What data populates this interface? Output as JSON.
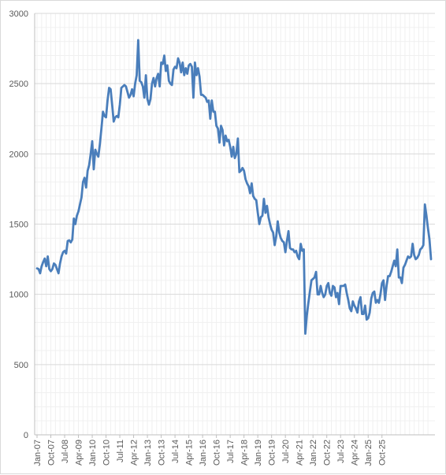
{
  "chart_data": {
    "type": "line",
    "title": "",
    "xlabel": "",
    "ylabel": "",
    "ylim": [
      0,
      3000
    ],
    "yticks": [
      0,
      500,
      1000,
      1500,
      2000,
      2500,
      3000
    ],
    "x_start": "Jan-07",
    "xtick_labels": [
      "Jan-07",
      "Oct-07",
      "Jul-08",
      "Apr-09",
      "Jan-10",
      "Oct-10",
      "Jul-11",
      "Apr-12",
      "Jan-13",
      "Oct-13",
      "Jul-14",
      "Apr-15",
      "Jan-16",
      "Oct-16",
      "Jul-17",
      "Apr-18",
      "Jan-19",
      "Oct-19",
      "Jul-20",
      "Apr-21",
      "Jan-22",
      "Oct-22",
      "Jul-23",
      "Apr-24",
      "Jan-25",
      "Oct-25"
    ],
    "grid": true,
    "legend": "none",
    "series": [
      {
        "color": "#4a7ebb",
        "values": [
          1185,
          1180,
          1150,
          1200,
          1230,
          1255,
          1200,
          1270,
          1180,
          1165,
          1180,
          1220,
          1210,
          1180,
          1150,
          1220,
          1270,
          1300,
          1310,
          1290,
          1380,
          1385,
          1370,
          1390,
          1540,
          1500,
          1560,
          1590,
          1640,
          1690,
          1800,
          1830,
          1760,
          1880,
          1920,
          2000,
          2090,
          1890,
          2030,
          2000,
          1980,
          2070,
          2180,
          2300,
          2270,
          2260,
          2380,
          2470,
          2460,
          2350,
          2230,
          2260,
          2270,
          2260,
          2350,
          2470,
          2480,
          2490,
          2480,
          2440,
          2400,
          2420,
          2460,
          2410,
          2500,
          2560,
          2810,
          2520,
          2510,
          2480,
          2400,
          2560,
          2390,
          2350,
          2390,
          2500,
          2540,
          2480,
          2540,
          2570,
          2480,
          2650,
          2640,
          2700,
          2590,
          2630,
          2520,
          2500,
          2490,
          2600,
          2620,
          2610,
          2680,
          2650,
          2580,
          2650,
          2560,
          2610,
          2570,
          2630,
          2640,
          2620,
          2400,
          2650,
          2560,
          2610,
          2550,
          2420,
          2420,
          2410,
          2400,
          2370,
          2380,
          2250,
          2380,
          2300,
          2300,
          2200,
          2180,
          2080,
          2200,
          2170,
          2060,
          2130,
          2090,
          2100,
          2050,
          1980,
          2050,
          1970,
          2000,
          2110,
          1870,
          1880,
          1900,
          1880,
          1820,
          1790,
          1770,
          1720,
          1790,
          1700,
          1680,
          1670,
          1580,
          1500,
          1550,
          1560,
          1680,
          1580,
          1630,
          1550,
          1500,
          1460,
          1440,
          1350,
          1410,
          1520,
          1440,
          1400,
          1380,
          1370,
          1300,
          1380,
          1450,
          1330,
          1320,
          1320,
          1300,
          1310,
          1270,
          1250,
          1360,
          1310,
          1320,
          720,
          850,
          940,
          1020,
          1100,
          1110,
          1120,
          1160,
          1000,
          1000,
          1060,
          1010,
          980,
          1000,
          1060,
          1080,
          1010,
          990,
          1060,
          1050,
          980,
          1010,
          930,
          1060,
          1060,
          1060,
          1070,
          1010,
          960,
          900,
          880,
          950,
          920,
          900,
          870,
          950,
          980,
          860,
          860,
          920,
          820,
          830,
          870,
          970,
          1010,
          1020,
          940,
          960,
          940,
          1000,
          1080,
          1100,
          960,
          1060,
          1130,
          1130,
          1160,
          1200,
          1240,
          1200,
          1320,
          1120,
          1120,
          1080,
          1190,
          1210,
          1240,
          1270,
          1260,
          1270,
          1360,
          1280,
          1250,
          1260,
          1280,
          1320,
          1330,
          1350,
          1640,
          1560,
          1470,
          1390,
          1250
        ]
      }
    ]
  }
}
